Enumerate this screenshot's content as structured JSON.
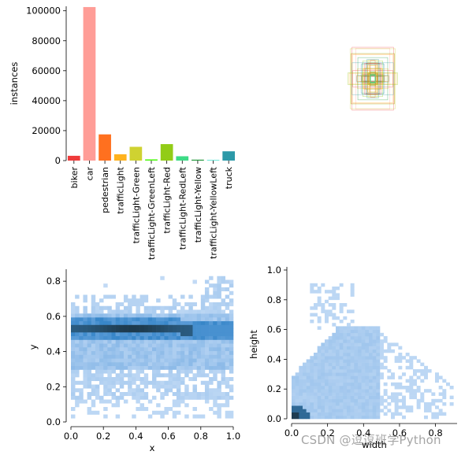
{
  "chart_data": [
    {
      "type": "bar",
      "ylabel": "instances",
      "categories": [
        "biker",
        "car",
        "pedestrian",
        "trafficLight",
        "trafficLight-Green",
        "trafficLight-GreenLeft",
        "trafficLight-Red",
        "trafficLight-RedLeft",
        "trafficLight-Yellow",
        "trafficLight-YellowLeft",
        "truck"
      ],
      "values": [
        3200,
        102500,
        17500,
        4200,
        9200,
        800,
        11000,
        2900,
        600,
        300,
        6200
      ],
      "colors": [
        "#ef3b3b",
        "#ff9d97",
        "#ff701f",
        "#ffb21d",
        "#cfd231",
        "#48f90a",
        "#92cc17",
        "#3ddb86",
        "#1a9334",
        "#00d4bb",
        "#2c99a8"
      ],
      "ylim": [
        0,
        103000
      ],
      "yticks": [
        0,
        20000,
        40000,
        60000,
        80000,
        100000
      ],
      "ytick_labels": [
        "0",
        "20000",
        "40000",
        "60000",
        "80000",
        "100000"
      ]
    },
    {
      "type": "box-overlay",
      "title": "",
      "note": "overlaid bounding boxes centered in a unit square"
    },
    {
      "type": "heatmap",
      "xlabel": "x",
      "ylabel": "y",
      "xlim": [
        0,
        1.0
      ],
      "ylim": [
        0.0,
        0.85
      ],
      "xticks": [
        0.0,
        0.2,
        0.4,
        0.6,
        0.8,
        1.0
      ],
      "xtick_labels": [
        "0.0",
        "0.2",
        "0.4",
        "0.6",
        "0.8",
        "1.0"
      ],
      "yticks": [
        0.0,
        0.2,
        0.4,
        0.6,
        0.8
      ],
      "ytick_labels": [
        "0.0",
        "0.2",
        "0.4",
        "0.6",
        "0.8"
      ],
      "density_band_center_y": 0.53
    },
    {
      "type": "heatmap",
      "xlabel": "width",
      "ylabel": "height",
      "xlim": [
        0,
        0.92
      ],
      "ylim": [
        0.0,
        1.0
      ],
      "xticks": [
        0.0,
        0.2,
        0.4,
        0.6,
        0.8
      ],
      "xtick_labels": [
        "0.0",
        "0.2",
        "0.4",
        "0.6",
        "0.8"
      ],
      "yticks": [
        0.0,
        0.2,
        0.4,
        0.6,
        0.8,
        1.0
      ],
      "ytick_labels": [
        "0.0",
        "0.2",
        "0.4",
        "0.6",
        "0.8",
        "1.0"
      ]
    }
  ],
  "watermark": "CSDN @逗逗班学Python"
}
